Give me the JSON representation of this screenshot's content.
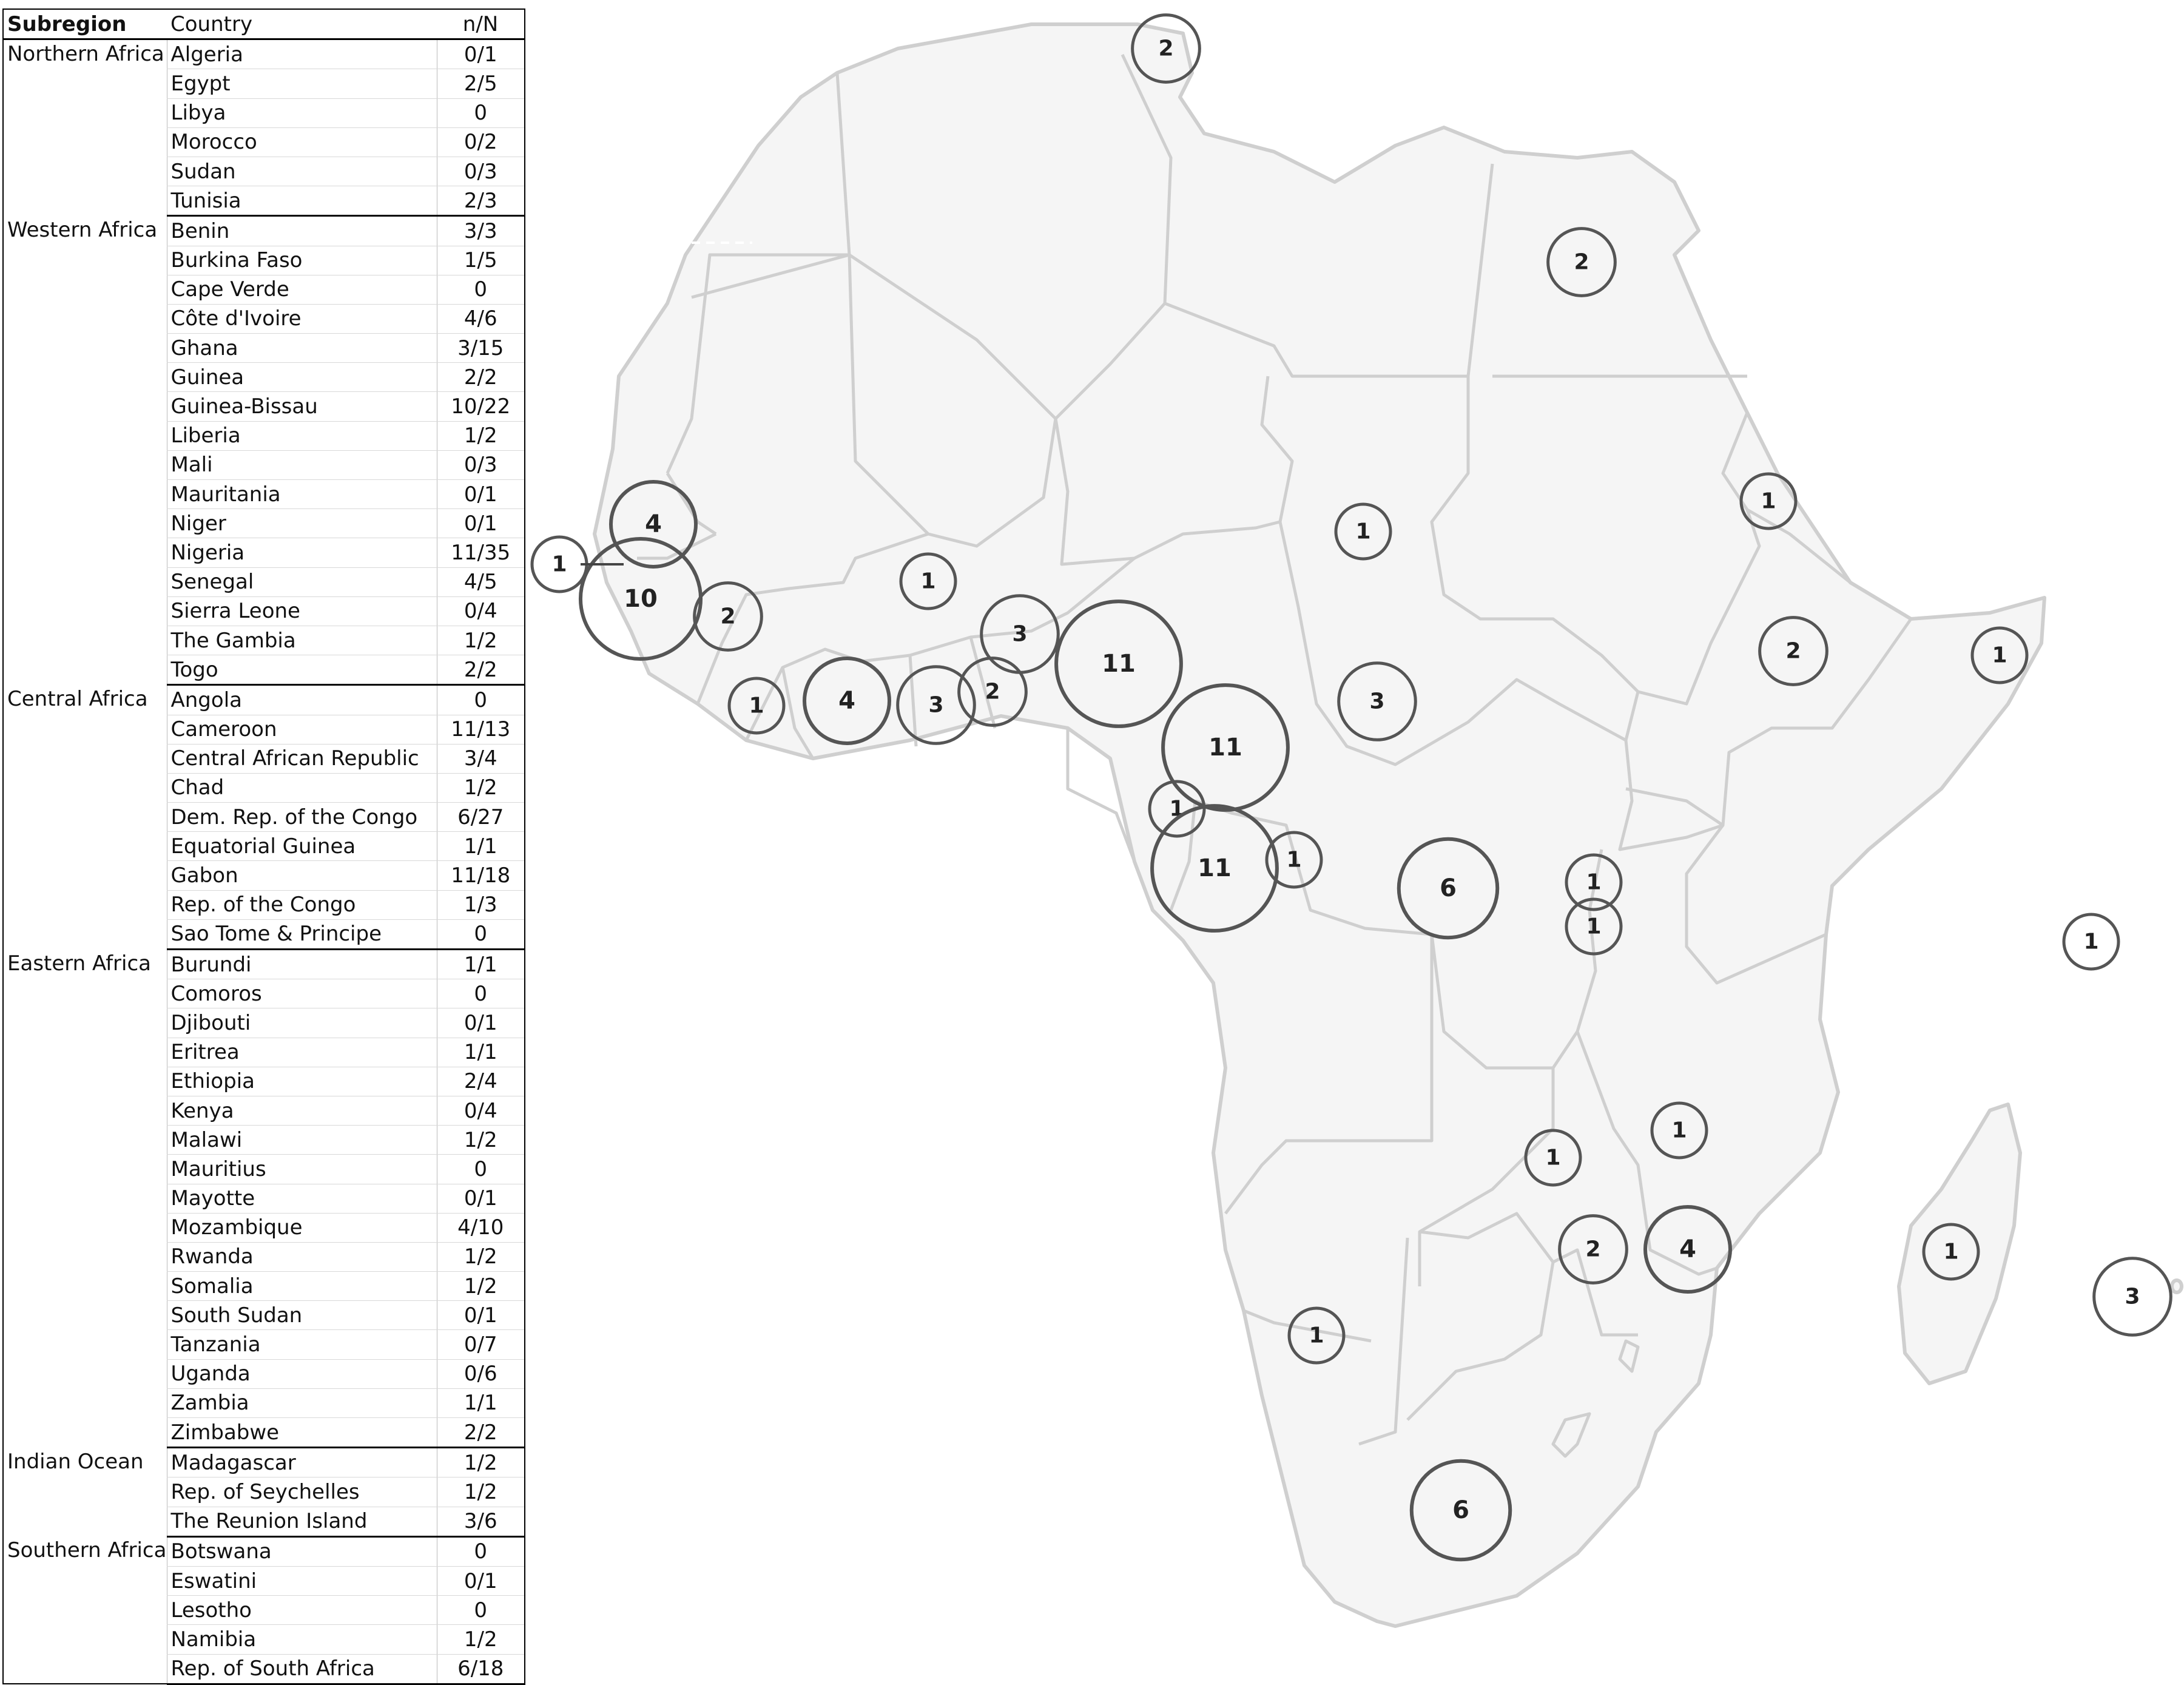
{
  "table": {
    "headers": {
      "subregion": "Subregion",
      "country": "Country",
      "nn": "n/N"
    },
    "groups": [
      {
        "subregion": "Northern Africa",
        "rows": [
          [
            "Algeria",
            "0/1"
          ],
          [
            "Egypt",
            "2/5"
          ],
          [
            "Libya",
            "0"
          ],
          [
            "Morocco",
            "0/2"
          ],
          [
            "Sudan",
            "0/3"
          ],
          [
            "Tunisia",
            "2/3"
          ]
        ]
      },
      {
        "subregion": "Western Africa",
        "rows": [
          [
            "Benin",
            "3/3"
          ],
          [
            "Burkina Faso",
            "1/5"
          ],
          [
            "Cape Verde",
            "0"
          ],
          [
            "Côte d'Ivoire",
            "4/6"
          ],
          [
            "Ghana",
            "3/15"
          ],
          [
            "Guinea",
            "2/2"
          ],
          [
            "Guinea-Bissau",
            "10/22"
          ],
          [
            "Liberia",
            "1/2"
          ],
          [
            "Mali",
            "0/3"
          ],
          [
            "Mauritania",
            "0/1"
          ],
          [
            "Niger",
            "0/1"
          ],
          [
            "Nigeria",
            "11/35"
          ],
          [
            "Senegal",
            "4/5"
          ],
          [
            "Sierra Leone",
            "0/4"
          ],
          [
            "The Gambia",
            "1/2"
          ],
          [
            "Togo",
            "2/2"
          ]
        ]
      },
      {
        "subregion": "Central Africa",
        "rows": [
          [
            "Angola",
            "0"
          ],
          [
            "Cameroon",
            "11/13"
          ],
          [
            "Central African Republic",
            "3/4"
          ],
          [
            "Chad",
            "1/2"
          ],
          [
            "Dem. Rep. of the Congo",
            "6/27"
          ],
          [
            "Equatorial Guinea",
            "1/1"
          ],
          [
            "Gabon",
            "11/18"
          ],
          [
            "Rep. of the Congo",
            "1/3"
          ],
          [
            "Sao Tome & Principe",
            "0"
          ]
        ]
      },
      {
        "subregion": "Eastern Africa",
        "rows": [
          [
            "Burundi",
            "1/1"
          ],
          [
            "Comoros",
            "0"
          ],
          [
            "Djibouti",
            "0/1"
          ],
          [
            "Eritrea",
            "1/1"
          ],
          [
            "Ethiopia",
            "2/4"
          ],
          [
            "Kenya",
            "0/4"
          ],
          [
            "Malawi",
            "1/2"
          ],
          [
            "Mauritius",
            "0"
          ],
          [
            "Mayotte",
            "0/1"
          ],
          [
            "Mozambique",
            "4/10"
          ],
          [
            "Rwanda",
            "1/2"
          ],
          [
            "Somalia",
            "1/2"
          ],
          [
            "South Sudan",
            "0/1"
          ],
          [
            "Tanzania",
            "0/7"
          ],
          [
            "Uganda",
            "0/6"
          ],
          [
            "Zambia",
            "1/1"
          ],
          [
            "Zimbabwe",
            "2/2"
          ]
        ]
      },
      {
        "subregion": "Indian Ocean",
        "rows": [
          [
            "Madagascar",
            "1/2"
          ],
          [
            "Rep. of Seychelles",
            "1/2"
          ],
          [
            "The Reunion Island",
            "3/6"
          ]
        ]
      },
      {
        "subregion": "Southern Africa",
        "rows": [
          [
            "Botswana",
            "0"
          ],
          [
            "Eswatini",
            "0/1"
          ],
          [
            "Lesotho",
            "0"
          ],
          [
            "Namibia",
            "1/2"
          ],
          [
            "Rep. of South Africa",
            "6/18"
          ]
        ]
      }
    ]
  },
  "map": {
    "bubbles": [
      {
        "label": "2",
        "country": "Tunisia",
        "value": 2
      },
      {
        "label": "2",
        "country": "Egypt",
        "value": 2
      },
      {
        "label": "1",
        "country": "Eritrea",
        "value": 1
      },
      {
        "label": "1",
        "country": "Chad",
        "value": 1
      },
      {
        "label": "2",
        "country": "Ethiopia",
        "value": 2
      },
      {
        "label": "1",
        "country": "Somalia",
        "value": 1
      },
      {
        "label": "4",
        "country": "Senegal",
        "value": 4
      },
      {
        "label": "1",
        "country": "The Gambia",
        "value": 1
      },
      {
        "label": "10",
        "country": "Guinea-Bissau",
        "value": 10
      },
      {
        "label": "2",
        "country": "Guinea",
        "value": 2
      },
      {
        "label": "1",
        "country": "Liberia",
        "value": 1
      },
      {
        "label": "4",
        "country": "Côte d'Ivoire",
        "value": 4
      },
      {
        "label": "1",
        "country": "Burkina Faso",
        "value": 1
      },
      {
        "label": "3",
        "country": "Ghana",
        "value": 3
      },
      {
        "label": "2",
        "country": "Togo",
        "value": 2
      },
      {
        "label": "3",
        "country": "Benin",
        "value": 3
      },
      {
        "label": "11",
        "country": "Nigeria",
        "value": 11
      },
      {
        "label": "3",
        "country": "Central African Republic",
        "value": 3
      },
      {
        "label": "11",
        "country": "Cameroon",
        "value": 11
      },
      {
        "label": "1",
        "country": "Equatorial Guinea",
        "value": 1
      },
      {
        "label": "11",
        "country": "Gabon",
        "value": 11
      },
      {
        "label": "1",
        "country": "Rep. of the Congo",
        "value": 1
      },
      {
        "label": "6",
        "country": "Dem. Rep. of the Congo",
        "value": 6
      },
      {
        "label": "1",
        "country": "Rwanda",
        "value": 1
      },
      {
        "label": "1",
        "country": "Burundi",
        "value": 1
      },
      {
        "label": "1",
        "country": "Rep. of Seychelles",
        "value": 1
      },
      {
        "label": "1",
        "country": "Zambia",
        "value": 1
      },
      {
        "label": "1",
        "country": "Malawi",
        "value": 1
      },
      {
        "label": "2",
        "country": "Zimbabwe",
        "value": 2
      },
      {
        "label": "4",
        "country": "Mozambique",
        "value": 4
      },
      {
        "label": "1",
        "country": "Namibia",
        "value": 1
      },
      {
        "label": "1",
        "country": "Madagascar",
        "value": 1
      },
      {
        "label": "3",
        "country": "The Reunion Island",
        "value": 3
      },
      {
        "label": "6",
        "country": "Rep. of South Africa",
        "value": 6
      }
    ]
  }
}
